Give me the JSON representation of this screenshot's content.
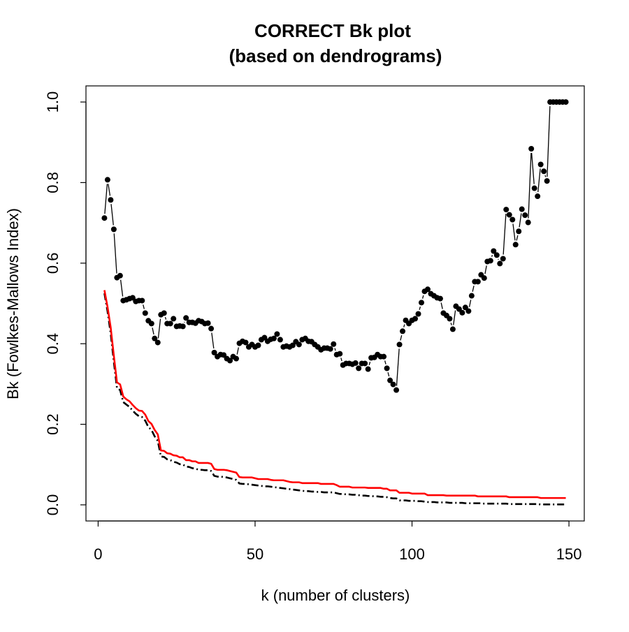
{
  "chart_data": {
    "type": "line",
    "title": [
      "CORRECT Bk plot",
      "(based on dendrograms)"
    ],
    "xlabel": "k (number of clusters)",
    "ylabel": "Bk (Fowlkes-Mallows Index)",
    "xlim": [
      -3.88,
      154.88
    ],
    "ylim": [
      -0.04,
      1.04
    ],
    "xticks": [
      0,
      50,
      100,
      150
    ],
    "yticks": [
      {
        "value": 0,
        "label": "0.0"
      },
      0.2,
      0.4,
      0.6,
      0.8,
      {
        "value": 1,
        "label": "1.0"
      }
    ],
    "x": [
      2,
      3,
      4,
      5,
      6,
      7,
      8,
      9,
      10,
      11,
      12,
      13,
      14,
      15,
      16,
      17,
      18,
      19,
      20,
      21,
      22,
      23,
      24,
      25,
      26,
      27,
      28,
      29,
      30,
      31,
      32,
      33,
      34,
      35,
      36,
      37,
      38,
      39,
      40,
      41,
      42,
      43,
      44,
      45,
      46,
      47,
      48,
      49,
      50,
      51,
      52,
      53,
      54,
      55,
      56,
      57,
      58,
      59,
      60,
      61,
      62,
      63,
      64,
      65,
      66,
      67,
      68,
      69,
      70,
      71,
      72,
      73,
      74,
      75,
      76,
      77,
      78,
      79,
      80,
      81,
      82,
      83,
      84,
      85,
      86,
      87,
      88,
      89,
      90,
      91,
      92,
      93,
      94,
      95,
      96,
      97,
      98,
      99,
      100,
      101,
      102,
      103,
      104,
      105,
      106,
      107,
      108,
      109,
      110,
      111,
      112,
      113,
      114,
      115,
      116,
      117,
      118,
      119,
      120,
      121,
      122,
      123,
      124,
      125,
      126,
      127,
      128,
      129,
      130,
      131,
      132,
      133,
      134,
      135,
      136,
      137,
      138,
      139,
      140,
      141,
      142,
      143,
      144,
      145,
      146,
      147,
      148,
      149
    ],
    "series": [
      {
        "color": "#000000",
        "line_style": "points-and-lines",
        "values": [
          0.712,
          0.807,
          0.757,
          0.684,
          0.564,
          0.569,
          0.507,
          0.509,
          0.512,
          0.514,
          0.505,
          0.507,
          0.507,
          0.476,
          0.457,
          0.45,
          0.413,
          0.403,
          0.472,
          0.476,
          0.45,
          0.45,
          0.462,
          0.443,
          0.444,
          0.443,
          0.464,
          0.453,
          0.453,
          0.451,
          0.457,
          0.455,
          0.45,
          0.451,
          0.4375,
          0.378,
          0.368,
          0.373,
          0.372,
          0.363,
          0.358,
          0.368,
          0.363,
          0.401,
          0.406,
          0.403,
          0.392,
          0.398,
          0.392,
          0.396,
          0.41,
          0.415,
          0.406,
          0.411,
          0.413,
          0.424,
          0.41,
          0.392,
          0.394,
          0.392,
          0.396,
          0.405,
          0.398,
          0.41,
          0.413,
          0.406,
          0.405,
          0.398,
          0.392,
          0.385,
          0.389,
          0.389,
          0.387,
          0.399,
          0.373,
          0.375,
          0.347,
          0.351,
          0.351,
          0.349,
          0.352,
          0.339,
          0.351,
          0.351,
          0.337,
          0.365,
          0.366,
          0.373,
          0.368,
          0.368,
          0.339,
          0.309,
          0.299,
          0.285,
          0.398,
          0.431,
          0.458,
          0.45,
          0.458,
          0.462,
          0.474,
          0.502,
          0.53,
          0.535,
          0.524,
          0.519,
          0.514,
          0.512,
          0.476,
          0.47,
          0.462,
          0.436,
          0.493,
          0.486,
          0.477,
          0.49,
          0.481,
          0.519,
          0.554,
          0.554,
          0.571,
          0.563,
          0.604,
          0.606,
          0.63,
          0.62,
          0.599,
          0.611,
          0.733,
          0.72,
          0.708,
          0.646,
          0.679,
          0.734,
          0.719,
          0.701,
          0.884,
          0.786,
          0.766,
          0.845,
          0.828,
          0.804,
          1,
          1,
          1,
          1,
          1,
          1
        ]
      },
      {
        "color": "#000000",
        "line_style": "dashdot",
        "values": [
          0.525,
          0.48,
          0.425,
          0.355,
          0.29,
          0.285,
          0.255,
          0.249,
          0.243,
          0.234,
          0.226,
          0.22,
          0.218,
          0.209,
          0.193,
          0.186,
          0.17,
          0.159,
          0.12,
          0.119,
          0.113,
          0.111,
          0.107,
          0.105,
          0.101,
          0.1,
          0.095,
          0.094,
          0.091,
          0.09,
          0.087,
          0.087,
          0.086,
          0.086,
          0.084,
          0.072,
          0.07,
          0.07,
          0.069,
          0.068,
          0.066,
          0.064,
          0.062,
          0.053,
          0.052,
          0.052,
          0.051,
          0.05,
          0.049,
          0.048,
          0.047,
          0.046,
          0.046,
          0.045,
          0.044,
          0.043,
          0.042,
          0.041,
          0.04,
          0.039,
          0.038,
          0.037,
          0.036,
          0.035,
          0.034,
          0.034,
          0.033,
          0.033,
          0.032,
          0.032,
          0.031,
          0.031,
          0.031,
          0.031,
          0.029,
          0.027,
          0.027,
          0.026,
          0.026,
          0.025,
          0.025,
          0.024,
          0.023,
          0.023,
          0.022,
          0.022,
          0.021,
          0.021,
          0.02,
          0.02,
          0.019,
          0.017,
          0.016,
          0.016,
          0.011,
          0.011,
          0.011,
          0.01,
          0.01,
          0.01,
          0.009,
          0.009,
          0.008,
          0.007,
          0.007,
          0.007,
          0.006,
          0.006,
          0.006,
          0.006,
          0.005,
          0.005,
          0.005,
          0.005,
          0.005,
          0.004,
          0.004,
          0.004,
          0.004,
          0.004,
          0.004,
          0.003,
          0.003,
          0.003,
          0.003,
          0.003,
          0.003,
          0.003,
          0.003,
          0.002,
          0.002,
          0.002,
          0.002,
          0.002,
          0.002,
          0.002,
          0.002,
          0.002,
          0.002,
          0.001,
          0.001,
          0.001,
          0.001,
          0.001,
          0.001,
          0.001,
          0.001,
          0.001
        ]
      },
      {
        "color": "#ff0000",
        "line_style": "solid",
        "values": [
          0.533,
          0.491,
          0.44,
          0.37,
          0.304,
          0.299,
          0.269,
          0.262,
          0.257,
          0.248,
          0.24,
          0.234,
          0.233,
          0.224,
          0.208,
          0.201,
          0.186,
          0.175,
          0.135,
          0.134,
          0.128,
          0.127,
          0.123,
          0.122,
          0.118,
          0.118,
          0.111,
          0.111,
          0.108,
          0.108,
          0.104,
          0.104,
          0.104,
          0.104,
          0.102,
          0.089,
          0.087,
          0.087,
          0.087,
          0.086,
          0.084,
          0.082,
          0.08,
          0.069,
          0.068,
          0.068,
          0.068,
          0.068,
          0.066,
          0.064,
          0.064,
          0.064,
          0.064,
          0.062,
          0.061,
          0.061,
          0.061,
          0.061,
          0.059,
          0.057,
          0.056,
          0.056,
          0.056,
          0.054,
          0.054,
          0.054,
          0.054,
          0.054,
          0.054,
          0.052,
          0.052,
          0.052,
          0.052,
          0.052,
          0.049,
          0.045,
          0.045,
          0.045,
          0.045,
          0.043,
          0.043,
          0.043,
          0.043,
          0.043,
          0.042,
          0.042,
          0.042,
          0.042,
          0.042,
          0.04,
          0.04,
          0.036,
          0.036,
          0.036,
          0.03,
          0.03,
          0.03,
          0.03,
          0.028,
          0.028,
          0.028,
          0.028,
          0.028,
          0.024,
          0.024,
          0.024,
          0.024,
          0.024,
          0.024,
          0.023,
          0.023,
          0.023,
          0.023,
          0.023,
          0.023,
          0.023,
          0.023,
          0.023,
          0.023,
          0.021,
          0.021,
          0.021,
          0.021,
          0.021,
          0.021,
          0.021,
          0.021,
          0.021,
          0.021,
          0.019,
          0.019,
          0.019,
          0.019,
          0.019,
          0.019,
          0.019,
          0.019,
          0.019,
          0.019,
          0.017,
          0.017,
          0.017,
          0.017,
          0.017,
          0.017,
          0.017,
          0.017,
          0.017
        ]
      }
    ]
  }
}
